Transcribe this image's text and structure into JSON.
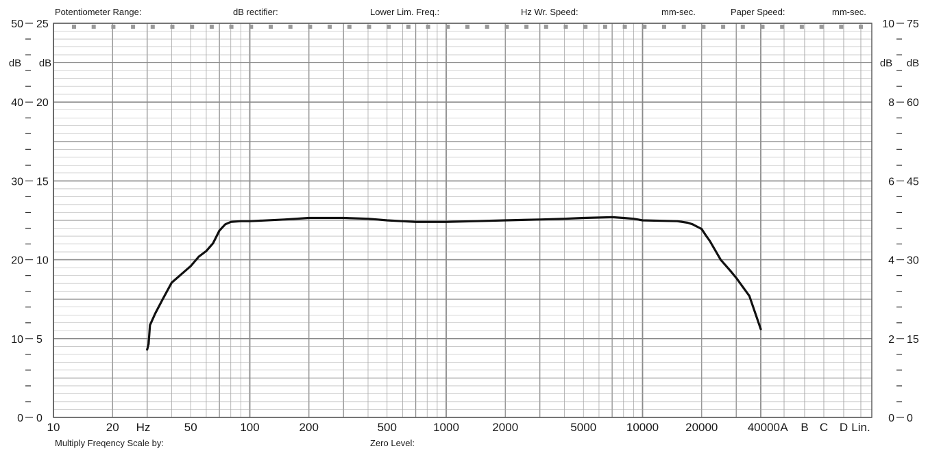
{
  "header": {
    "potentiometer_range": "Potentiometer Range:",
    "db_rectifier": "dB rectifier:",
    "lower_lim_freq": "Lower Lim. Freq.:",
    "hz_wr_speed": "Hz Wr. Speed:",
    "mm_sec_1": "mm-sec.",
    "paper_speed": "Paper Speed:",
    "mm_sec_2": "mm-sec."
  },
  "footer": {
    "multiply": "Multiply Freqency Scale by:",
    "zero_level": "Zero Level:"
  },
  "colors": {
    "grid": "#8a8a8a",
    "grid_minor": "#a8a8a8",
    "curve": "#111111",
    "marker": "#9a9a9a"
  },
  "chart_data": {
    "type": "line",
    "x_scale": "log",
    "xlim": [
      10,
      40000
    ],
    "ylim": [
      0,
      50
    ],
    "x_ticks": [
      {
        "v": 10,
        "label": "10"
      },
      {
        "v": 20,
        "label": "20"
      },
      {
        "v": 50,
        "label": "50"
      },
      {
        "v": 100,
        "label": "100"
      },
      {
        "v": 200,
        "label": "200"
      },
      {
        "v": 500,
        "label": "500"
      },
      {
        "v": 1000,
        "label": "1000"
      },
      {
        "v": 2000,
        "label": "2000"
      },
      {
        "v": 5000,
        "label": "5000"
      },
      {
        "v": 10000,
        "label": "10000"
      },
      {
        "v": 20000,
        "label": "20000"
      },
      {
        "v": 40000,
        "label": "40000"
      }
    ],
    "x_unit": "Hz",
    "x_extra_labels": [
      "A",
      "B",
      "C",
      "D",
      "Lin."
    ],
    "y_left_outer_ticks": [
      {
        "v": 50,
        "label": "50"
      },
      {
        "v": 40,
        "label": "40"
      },
      {
        "v": 30,
        "label": "30"
      },
      {
        "v": 20,
        "label": "20"
      },
      {
        "v": 10,
        "label": "10"
      },
      {
        "v": 0,
        "label": "0"
      }
    ],
    "y_left_inner_ticks": [
      {
        "v": 50,
        "label": "25"
      },
      {
        "v": 40,
        "label": "20"
      },
      {
        "v": 30,
        "label": "15"
      },
      {
        "v": 20,
        "label": "10"
      },
      {
        "v": 10,
        "label": "5"
      },
      {
        "v": 0,
        "label": "0"
      }
    ],
    "y_right_inner_ticks": [
      {
        "v": 50,
        "label": "10"
      },
      {
        "v": 40,
        "label": "8"
      },
      {
        "v": 30,
        "label": "6"
      },
      {
        "v": 20,
        "label": "4"
      },
      {
        "v": 10,
        "label": "2"
      },
      {
        "v": 0,
        "label": "0"
      }
    ],
    "y_right_outer_ticks": [
      {
        "v": 50,
        "label": "75"
      },
      {
        "v": 40,
        "label": "60"
      },
      {
        "v": 30,
        "label": "45"
      },
      {
        "v": 20,
        "label": "30"
      },
      {
        "v": 10,
        "label": "15"
      },
      {
        "v": 0,
        "label": "0"
      }
    ],
    "y_unit_labels": [
      "dB",
      "dB"
    ],
    "series": [
      {
        "x": [
          30,
          30.5,
          31,
          33,
          36,
          40,
          45,
          50,
          55,
          60,
          65,
          70,
          75,
          80,
          90,
          100,
          150,
          200,
          300,
          400,
          500,
          700,
          1000,
          2000,
          3000,
          4000,
          5000,
          7000,
          8000,
          9000,
          10000,
          15000,
          17000,
          18000,
          20000,
          21000,
          22000,
          25000,
          28000,
          30000,
          35000,
          40000
        ],
        "y": [
          8.6,
          9.3,
          11.7,
          13.2,
          15.0,
          17.1,
          18.2,
          19.2,
          20.4,
          21.1,
          22.1,
          23.7,
          24.5,
          24.8,
          24.9,
          24.9,
          25.1,
          25.3,
          25.3,
          25.2,
          25.0,
          24.8,
          24.8,
          25.0,
          25.1,
          25.2,
          25.3,
          25.4,
          25.3,
          25.2,
          25.0,
          24.9,
          24.7,
          24.5,
          23.9,
          23.1,
          22.4,
          20.0,
          18.6,
          17.7,
          15.4,
          11.2
        ]
      }
    ]
  }
}
